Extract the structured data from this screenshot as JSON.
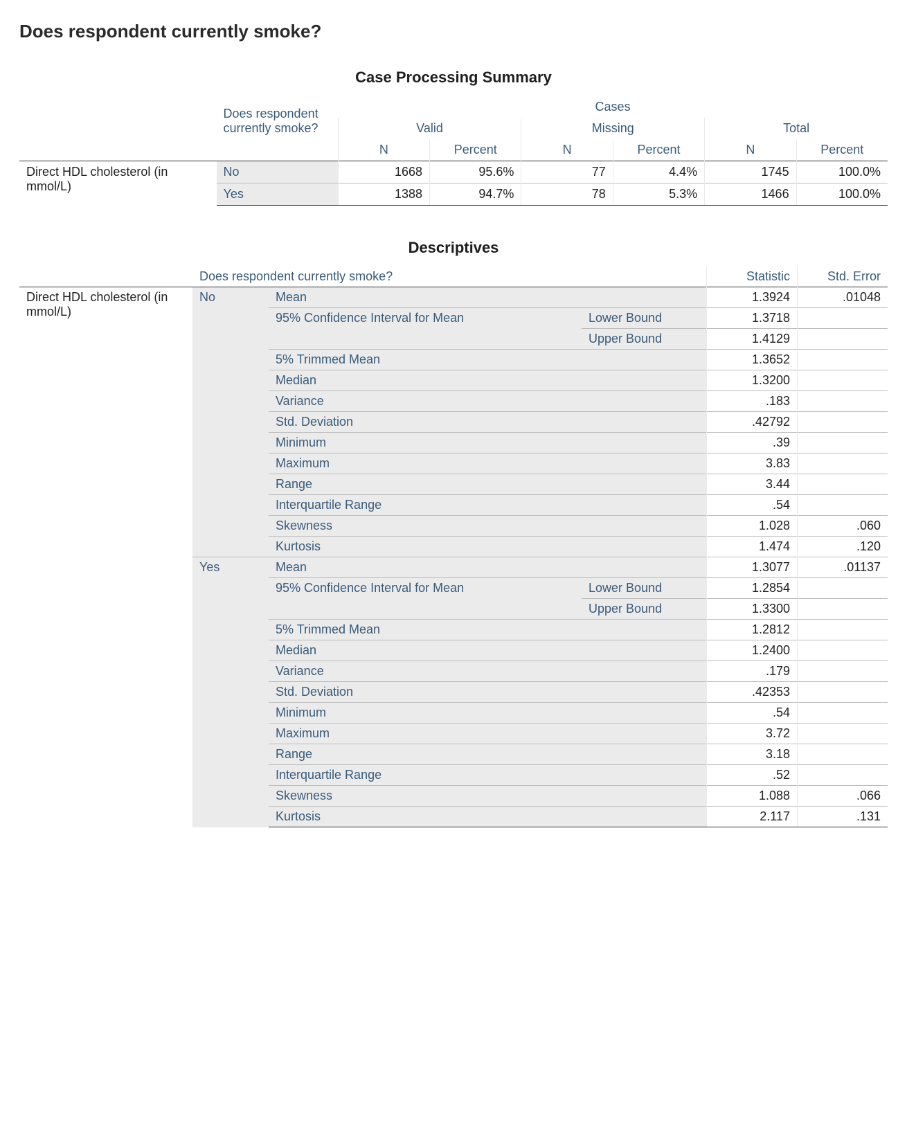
{
  "page": {
    "title": "Does respondent currently smoke?"
  },
  "cps": {
    "title": "Case Processing Summary",
    "row_label": "Direct HDL cholesterol (in mmol/L)",
    "group_header": "Does respondent currently smoke?",
    "cases_header": "Cases",
    "valid_header": "Valid",
    "missing_header": "Missing",
    "total_header": "Total",
    "n_header": "N",
    "percent_header": "Percent",
    "rows": [
      {
        "group": "No",
        "valid_n": "1668",
        "valid_pct": "95.6%",
        "miss_n": "77",
        "miss_pct": "4.4%",
        "tot_n": "1745",
        "tot_pct": "100.0%"
      },
      {
        "group": "Yes",
        "valid_n": "1388",
        "valid_pct": "94.7%",
        "miss_n": "78",
        "miss_pct": "5.3%",
        "tot_n": "1466",
        "tot_pct": "100.0%"
      }
    ]
  },
  "desc": {
    "title": "Descriptives",
    "row_label": "Direct HDL cholesterol (in mmol/L)",
    "group_header": "Does respondent currently smoke?",
    "stat_header": "Statistic",
    "err_header": "Std. Error",
    "labels": {
      "mean": "Mean",
      "ci": "95% Confidence Interval for Mean",
      "lower": "Lower Bound",
      "upper": "Upper Bound",
      "trim": "5% Trimmed Mean",
      "median": "Median",
      "variance": "Variance",
      "sd": "Std. Deviation",
      "min": "Minimum",
      "max": "Maximum",
      "range": "Range",
      "iqr": "Interquartile Range",
      "skew": "Skewness",
      "kurt": "Kurtosis"
    },
    "groups": [
      {
        "name": "No",
        "mean": "1.3924",
        "mean_err": ".01048",
        "ci_lower": "1.3718",
        "ci_upper": "1.4129",
        "trim": "1.3652",
        "median": "1.3200",
        "variance": ".183",
        "sd": ".42792",
        "min": ".39",
        "max": "3.83",
        "range": "3.44",
        "iqr": ".54",
        "skew": "1.028",
        "skew_err": ".060",
        "kurt": "1.474",
        "kurt_err": ".120"
      },
      {
        "name": "Yes",
        "mean": "1.3077",
        "mean_err": ".01137",
        "ci_lower": "1.2854",
        "ci_upper": "1.3300",
        "trim": "1.2812",
        "median": "1.2400",
        "variance": ".179",
        "sd": ".42353",
        "min": ".54",
        "max": "3.72",
        "range": "3.18",
        "iqr": ".52",
        "skew": "1.088",
        "skew_err": ".066",
        "kurt": "2.117",
        "kurt_err": ".131"
      }
    ]
  },
  "style": {
    "header_text_color": "#3a5b7a",
    "row_shade": "#ebebeb",
    "rule_color": "#bcbcbc",
    "outer_rule_color": "#333333",
    "background": "#ffffff"
  }
}
